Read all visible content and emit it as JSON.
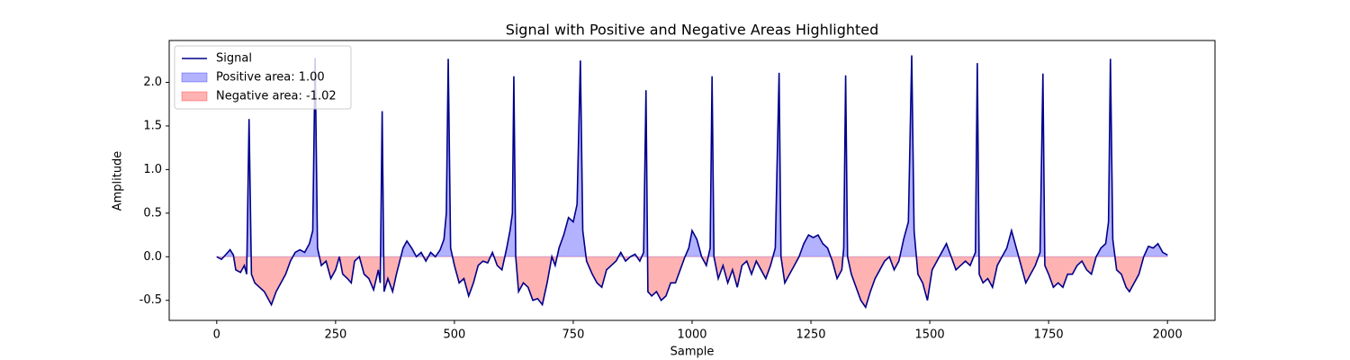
{
  "chart_data": {
    "type": "line",
    "title": "Signal with Positive and Negative Areas Highlighted",
    "xlabel": "Sample",
    "ylabel": "Amplitude",
    "x": [
      0,
      10,
      20,
      28,
      35,
      40,
      50,
      58,
      63,
      68,
      73,
      80,
      90,
      100,
      110,
      115,
      125,
      135,
      145,
      155,
      165,
      175,
      185,
      195,
      202,
      207,
      212,
      220,
      230,
      240,
      250,
      258,
      265,
      275,
      283,
      290,
      300,
      310,
      320,
      330,
      340,
      344,
      348,
      352,
      360,
      370,
      378,
      385,
      392,
      400,
      410,
      420,
      430,
      440,
      450,
      460,
      470,
      478,
      483,
      487,
      492,
      500,
      510,
      520,
      530,
      540,
      550,
      560,
      570,
      580,
      590,
      600,
      610,
      617,
      622,
      625,
      629,
      635,
      645,
      655,
      665,
      675,
      685,
      695,
      705,
      712,
      720,
      730,
      740,
      750,
      758,
      765,
      770,
      778,
      790,
      800,
      810,
      820,
      830,
      840,
      850,
      860,
      870,
      880,
      890,
      898,
      903,
      907,
      915,
      925,
      935,
      945,
      955,
      965,
      975,
      985,
      993,
      1000,
      1010,
      1020,
      1030,
      1038,
      1042,
      1046,
      1055,
      1065,
      1075,
      1085,
      1095,
      1105,
      1115,
      1125,
      1135,
      1145,
      1155,
      1165,
      1175,
      1183,
      1187,
      1195,
      1205,
      1215,
      1225,
      1235,
      1245,
      1255,
      1265,
      1275,
      1285,
      1295,
      1305,
      1315,
      1319,
      1323,
      1327,
      1335,
      1345,
      1355,
      1365,
      1375,
      1385,
      1395,
      1405,
      1415,
      1425,
      1435,
      1445,
      1455,
      1462,
      1467,
      1475,
      1485,
      1495,
      1505,
      1515,
      1525,
      1535,
      1545,
      1555,
      1565,
      1575,
      1585,
      1596,
      1600,
      1604,
      1612,
      1622,
      1632,
      1642,
      1652,
      1662,
      1672,
      1682,
      1692,
      1702,
      1712,
      1722,
      1732,
      1738,
      1742,
      1750,
      1760,
      1770,
      1780,
      1790,
      1800,
      1810,
      1820,
      1830,
      1840,
      1850,
      1860,
      1870,
      1876,
      1880,
      1885,
      1893,
      1903,
      1913,
      1920,
      1930,
      1940,
      1950,
      1960,
      1970,
      1980,
      1990,
      2000
    ],
    "series": [
      {
        "name": "Signal",
        "color": "#00008b",
        "values": [
          0.0,
          -0.03,
          0.03,
          0.08,
          0.02,
          -0.15,
          -0.18,
          -0.1,
          -0.2,
          1.58,
          -0.2,
          -0.3,
          -0.35,
          -0.4,
          -0.5,
          -0.55,
          -0.4,
          -0.3,
          -0.2,
          -0.05,
          0.05,
          0.08,
          0.05,
          0.15,
          0.3,
          2.28,
          0.1,
          -0.1,
          -0.05,
          -0.25,
          -0.15,
          0.0,
          -0.2,
          -0.25,
          -0.3,
          -0.05,
          0.0,
          -0.2,
          -0.25,
          -0.38,
          -0.15,
          -0.3,
          1.67,
          -0.4,
          -0.25,
          -0.4,
          -0.2,
          -0.05,
          0.1,
          0.18,
          0.1,
          0.0,
          0.05,
          -0.05,
          0.05,
          0.0,
          0.08,
          0.2,
          0.5,
          2.27,
          0.1,
          -0.1,
          -0.3,
          -0.25,
          -0.45,
          -0.3,
          -0.1,
          -0.05,
          -0.07,
          0.05,
          -0.1,
          -0.15,
          0.1,
          0.3,
          0.5,
          2.07,
          0.0,
          -0.4,
          -0.3,
          -0.35,
          -0.5,
          -0.48,
          -0.55,
          -0.3,
          0.0,
          -0.1,
          0.1,
          0.25,
          0.45,
          0.4,
          0.6,
          2.25,
          0.3,
          -0.05,
          -0.2,
          -0.3,
          -0.35,
          -0.15,
          -0.1,
          -0.05,
          0.05,
          -0.05,
          0.0,
          0.03,
          -0.05,
          0.05,
          1.91,
          -0.4,
          -0.45,
          -0.4,
          -0.5,
          -0.45,
          -0.3,
          -0.3,
          -0.15,
          0.0,
          0.1,
          0.3,
          0.2,
          0.0,
          -0.1,
          0.1,
          2.07,
          0.0,
          -0.25,
          -0.1,
          -0.3,
          -0.15,
          -0.35,
          -0.1,
          -0.05,
          -0.2,
          -0.05,
          -0.15,
          -0.25,
          -0.1,
          0.1,
          2.11,
          0.0,
          -0.3,
          -0.2,
          -0.1,
          0.0,
          0.15,
          0.25,
          0.22,
          0.25,
          0.15,
          0.1,
          -0.05,
          -0.25,
          -0.15,
          0.1,
          2.08,
          0.0,
          -0.2,
          -0.35,
          -0.5,
          -0.58,
          -0.4,
          -0.25,
          -0.15,
          -0.05,
          0.0,
          -0.15,
          -0.05,
          0.2,
          0.4,
          2.31,
          0.3,
          -0.2,
          -0.3,
          -0.5,
          -0.15,
          -0.05,
          0.05,
          0.15,
          0.0,
          -0.15,
          -0.1,
          -0.05,
          -0.1,
          0.05,
          2.22,
          -0.2,
          -0.3,
          -0.25,
          -0.35,
          -0.1,
          0.0,
          0.1,
          0.3,
          0.1,
          -0.1,
          -0.3,
          -0.2,
          -0.1,
          0.05,
          2.1,
          -0.1,
          -0.2,
          -0.35,
          -0.3,
          -0.35,
          -0.2,
          -0.2,
          -0.1,
          -0.05,
          -0.15,
          -0.2,
          0.0,
          0.1,
          0.15,
          0.4,
          2.27,
          0.2,
          -0.15,
          -0.2,
          -0.35,
          -0.4,
          -0.3,
          -0.2,
          0.0,
          0.12,
          0.1,
          0.15,
          0.05,
          0.02
        ]
      }
    ],
    "fills": [
      {
        "name": "Positive area: 1.00",
        "color": "#0000ff",
        "side": "positive"
      },
      {
        "name": "Negative area: -1.02",
        "color": "#ff0000",
        "side": "negative"
      }
    ],
    "xlim": [
      -100,
      2100
    ],
    "xticks": [
      0,
      250,
      500,
      750,
      1000,
      1250,
      1500,
      1750,
      2000
    ],
    "ylim": [
      -0.73,
      2.48
    ],
    "yticks": [
      -0.5,
      {
        "value": 0,
        "label": "0.0"
      },
      0.5,
      {
        "value": 1,
        "label": "1.0"
      },
      1.5,
      {
        "value": 2,
        "label": "2.0"
      }
    ],
    "grid": false,
    "legend": "upper left"
  }
}
